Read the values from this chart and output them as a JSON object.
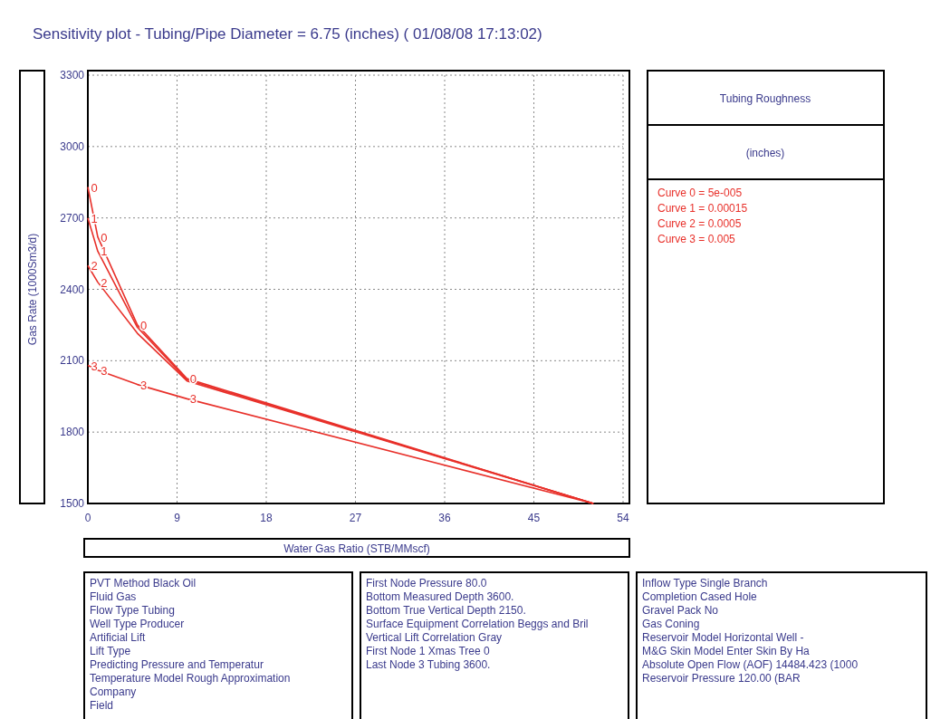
{
  "chart_data": {
    "type": "line",
    "title": "Sensitivity plot - Tubing/Pipe Diameter = 6.75 (inches) ( 01/08/08 17:13:02)",
    "xlabel": "Water Gas Ratio  (STB/MMscf)",
    "ylabel": "Gas Rate  (1000Sm3/d)",
    "legend_title": "Tubing Roughness\n(inches)",
    "legend": "right",
    "grid": true,
    "line_style": "solid",
    "marker": "none",
    "x": [
      0,
      1,
      5,
      10,
      51
    ],
    "xlim": [
      0,
      54
    ],
    "xticks": [
      0,
      9,
      18,
      27,
      36,
      45,
      54
    ],
    "ylim": [
      1500,
      3300
    ],
    "yticks": [
      1500,
      1800,
      2100,
      2400,
      2700,
      3000,
      3300
    ],
    "series": [
      {
        "name": "Curve 0 = 5e-005",
        "color": "#e8302a",
        "values": [
          2830,
          2620,
          2250,
          2025,
          1500
        ]
      },
      {
        "name": "Curve 1 = 0.00015",
        "color": "#e8302a",
        "values": [
          2700,
          2560,
          2240,
          2020,
          1500
        ]
      },
      {
        "name": "Curve 2 = 0.0005",
        "color": "#e8302a",
        "values": [
          2500,
          2430,
          2215,
          2015,
          1500
        ]
      },
      {
        "name": "Curve 3 = 0.005",
        "color": "#e8302a",
        "values": [
          2080,
          2060,
          2000,
          1940,
          1500
        ]
      }
    ],
    "annotations": [
      {
        "text": "0",
        "x": 0,
        "y": 2830
      },
      {
        "text": "0",
        "x": 1,
        "y": 2620
      },
      {
        "text": "0",
        "x": 5,
        "y": 2250
      },
      {
        "text": "0",
        "x": 10,
        "y": 2025
      },
      {
        "text": "1",
        "x": 0,
        "y": 2700
      },
      {
        "text": "1",
        "x": 1,
        "y": 2560
      },
      {
        "text": "2",
        "x": 0,
        "y": 2500
      },
      {
        "text": "2",
        "x": 1,
        "y": 2430
      },
      {
        "text": "3",
        "x": 0,
        "y": 2080
      },
      {
        "text": "3",
        "x": 1,
        "y": 2060
      },
      {
        "text": "3",
        "x": 5,
        "y": 2000
      },
      {
        "text": "3",
        "x": 10,
        "y": 1940
      },
      "PVT Method Black Oil",
      "Fluid Gas",
      "Flow Type Tubing",
      "Well Type Producer",
      "Artificial Lift",
      "Lift Type",
      "Predicting Pressure and Temperatur",
      "Temperature Model Rough Approximation",
      "Company",
      "Field",
      "First Node Pressure 80.0",
      "Bottom Measured Depth 3600.",
      "Bottom True Vertical Depth 2150.",
      "Surface Equipment Correlation Beggs and Bril",
      "Vertical Lift Correlation Gray",
      "First Node 1 Xmas Tree 0",
      "Last Node 3 Tubing 3600.",
      "Inflow Type Single Branch",
      "Completion Cased Hole",
      "Gravel Pack No",
      "Gas Coning",
      "Reservoir Model Horizontal Well -",
      "M&G Skin Model Enter Skin By Ha",
      "Absolute Open Flow (AOF) 14484.423 (1000",
      "Reservoir Pressure 120.00 (BAR"
    ]
  }
}
